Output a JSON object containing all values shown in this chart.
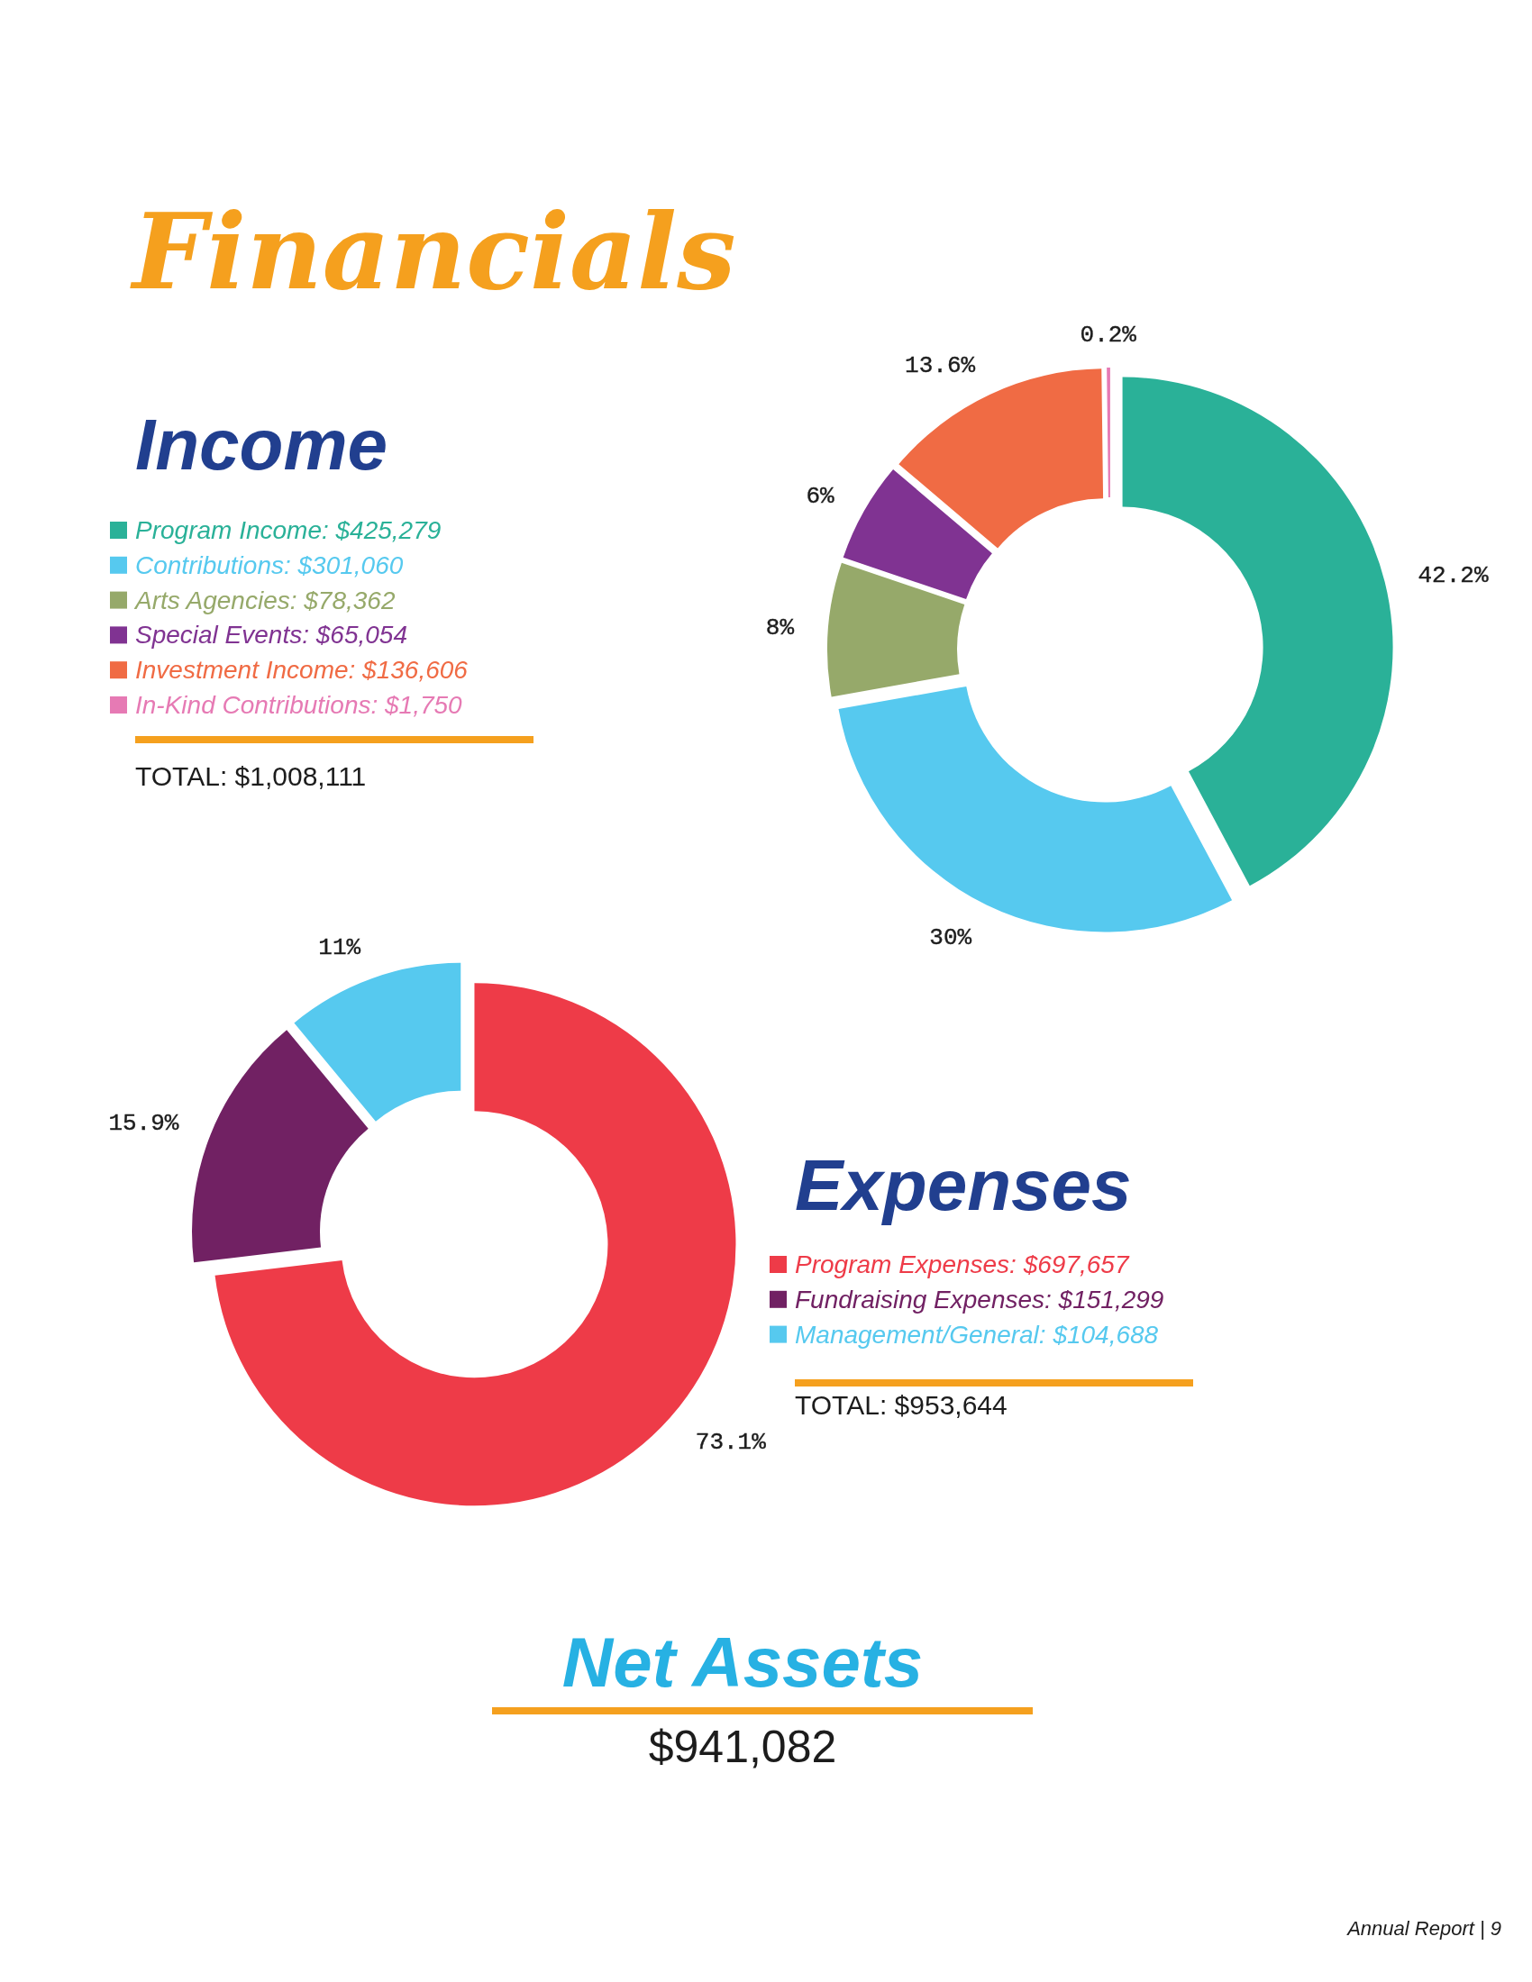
{
  "chart_data": [
    {
      "type": "other",
      "title": "Financials"
    },
    {
      "type": "donut",
      "title": "Income",
      "categories": [
        "Program Income: $425,279",
        "Contributions: $301,060",
        "Arts Agencies: $78,362",
        "Special Events: $65,054",
        "Investment Income: $136,606",
        "In-Kind Contributions: $1,750"
      ],
      "values": [
        42.2,
        30,
        8,
        6,
        13.6,
        0.2
      ],
      "colors": [
        "#2ab198",
        "#56c9ef",
        "#96a96a",
        "#803392",
        "#f06b44",
        "#e67ab4"
      ],
      "value_labels": [
        "42.2%",
        "30%",
        "8%",
        "6%",
        "13.6%",
        "0.2%"
      ],
      "legend": "left",
      "annotations": [
        "TOTAL: $1,008,111"
      ]
    },
    {
      "type": "donut",
      "title": "Expenses",
      "categories": [
        "Program Expenses: $697,657",
        "Fundraising Expenses: $151,299",
        "Management/General: $104,688"
      ],
      "values": [
        73.1,
        15.9,
        11
      ],
      "colors": [
        "#ee3b48",
        "#712163",
        "#56c9ef"
      ],
      "value_labels": [
        "73.1%",
        "15.9%",
        "11%"
      ],
      "legend": "right",
      "annotations": [
        "TOTAL: $953,644"
      ]
    },
    {
      "type": "other",
      "title": "Net Assets",
      "annotations": [
        "$941,082",
        "Annual Report | 9"
      ]
    }
  ]
}
